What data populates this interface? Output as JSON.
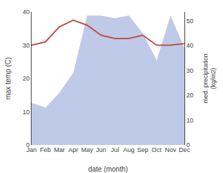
{
  "chart_data": {
    "type": "line",
    "categories": [
      "Jan",
      "Feb",
      "Mar",
      "Apr",
      "May",
      "Jun",
      "Jul",
      "Aug",
      "Sep",
      "Oct",
      "Nov",
      "Dec"
    ],
    "xlabel": "date (month)",
    "ylabel": "max temp (C)",
    "y2label": "med. precipitation\n(kg/m2)",
    "series": [
      {
        "type": "area",
        "axis": "y2",
        "color": "#bfc9e8",
        "values": [
          17,
          15,
          21,
          29,
          52,
          52,
          51,
          52,
          45,
          34,
          52,
          39
        ]
      },
      {
        "type": "line",
        "color": "#c0504d",
        "values": [
          30.0,
          31.0,
          35.5,
          37.5,
          36.0,
          33.0,
          32.0,
          32.0,
          33.0,
          30.0,
          30.0,
          30.5
        ]
      }
    ],
    "ylim": [
      0,
      40
    ],
    "yticks": [
      0,
      10,
      20,
      30,
      40
    ],
    "y2lim": [
      0,
      53.5
    ],
    "y2ticks": [
      0,
      10,
      20,
      30,
      40,
      50
    ],
    "grid": false
  }
}
